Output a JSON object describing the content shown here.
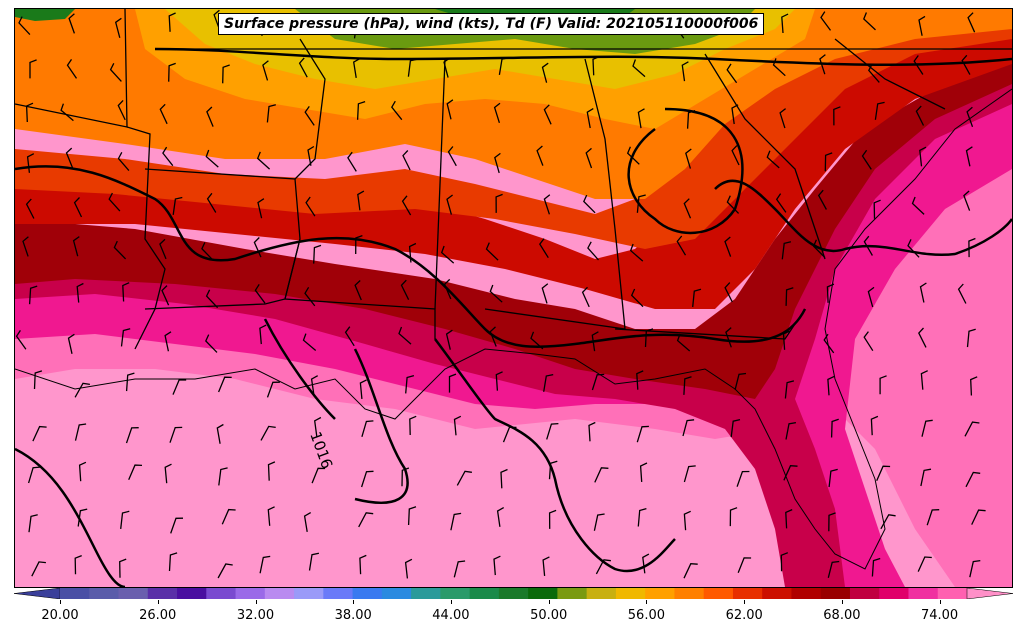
{
  "title": "Surface pressure (hPa), wind (kts), Td (F) Valid: 202105110000f006",
  "isobar_label": "1016",
  "colorbar": {
    "tick_labels": [
      "20.00",
      "26.00",
      "32.00",
      "38.00",
      "44.00",
      "50.00",
      "56.00",
      "62.00",
      "68.00",
      "74.00"
    ],
    "colors": [
      "#3a3f9a",
      "#4a4fa5",
      "#5a5caa",
      "#6a5fae",
      "#5a2fa8",
      "#4a0fa0",
      "#7a4ad0",
      "#9a6ae8",
      "#b98af0",
      "#9a9af8",
      "#6a7af8",
      "#3a7af0",
      "#2a8ae0",
      "#2a9a9a",
      "#2a9a6a",
      "#1a8a4a",
      "#1a7a2a",
      "#0a6a0a",
      "#7a9a10",
      "#c8b010",
      "#f0b800",
      "#ffa000",
      "#ff8000",
      "#ff5a00",
      "#e83000",
      "#cc1000",
      "#b00000",
      "#990000",
      "#c00040",
      "#e0006a",
      "#f030a0",
      "#ff60b0",
      "#ff90c8"
    ]
  },
  "colors": {
    "gulf": "#ff96cc",
    "coast_pink": "#ff70b8",
    "magenta": "#f01890",
    "crimson": "#c8004a",
    "dark_red": "#a00008",
    "red": "#cc0a00",
    "red_orange": "#e83a00",
    "orange": "#ff7a00",
    "amber": "#ffa000",
    "yellow": "#e8c000",
    "olive": "#6a9a10",
    "green": "#1a7a1a"
  },
  "legend_units": "Td (F)"
}
